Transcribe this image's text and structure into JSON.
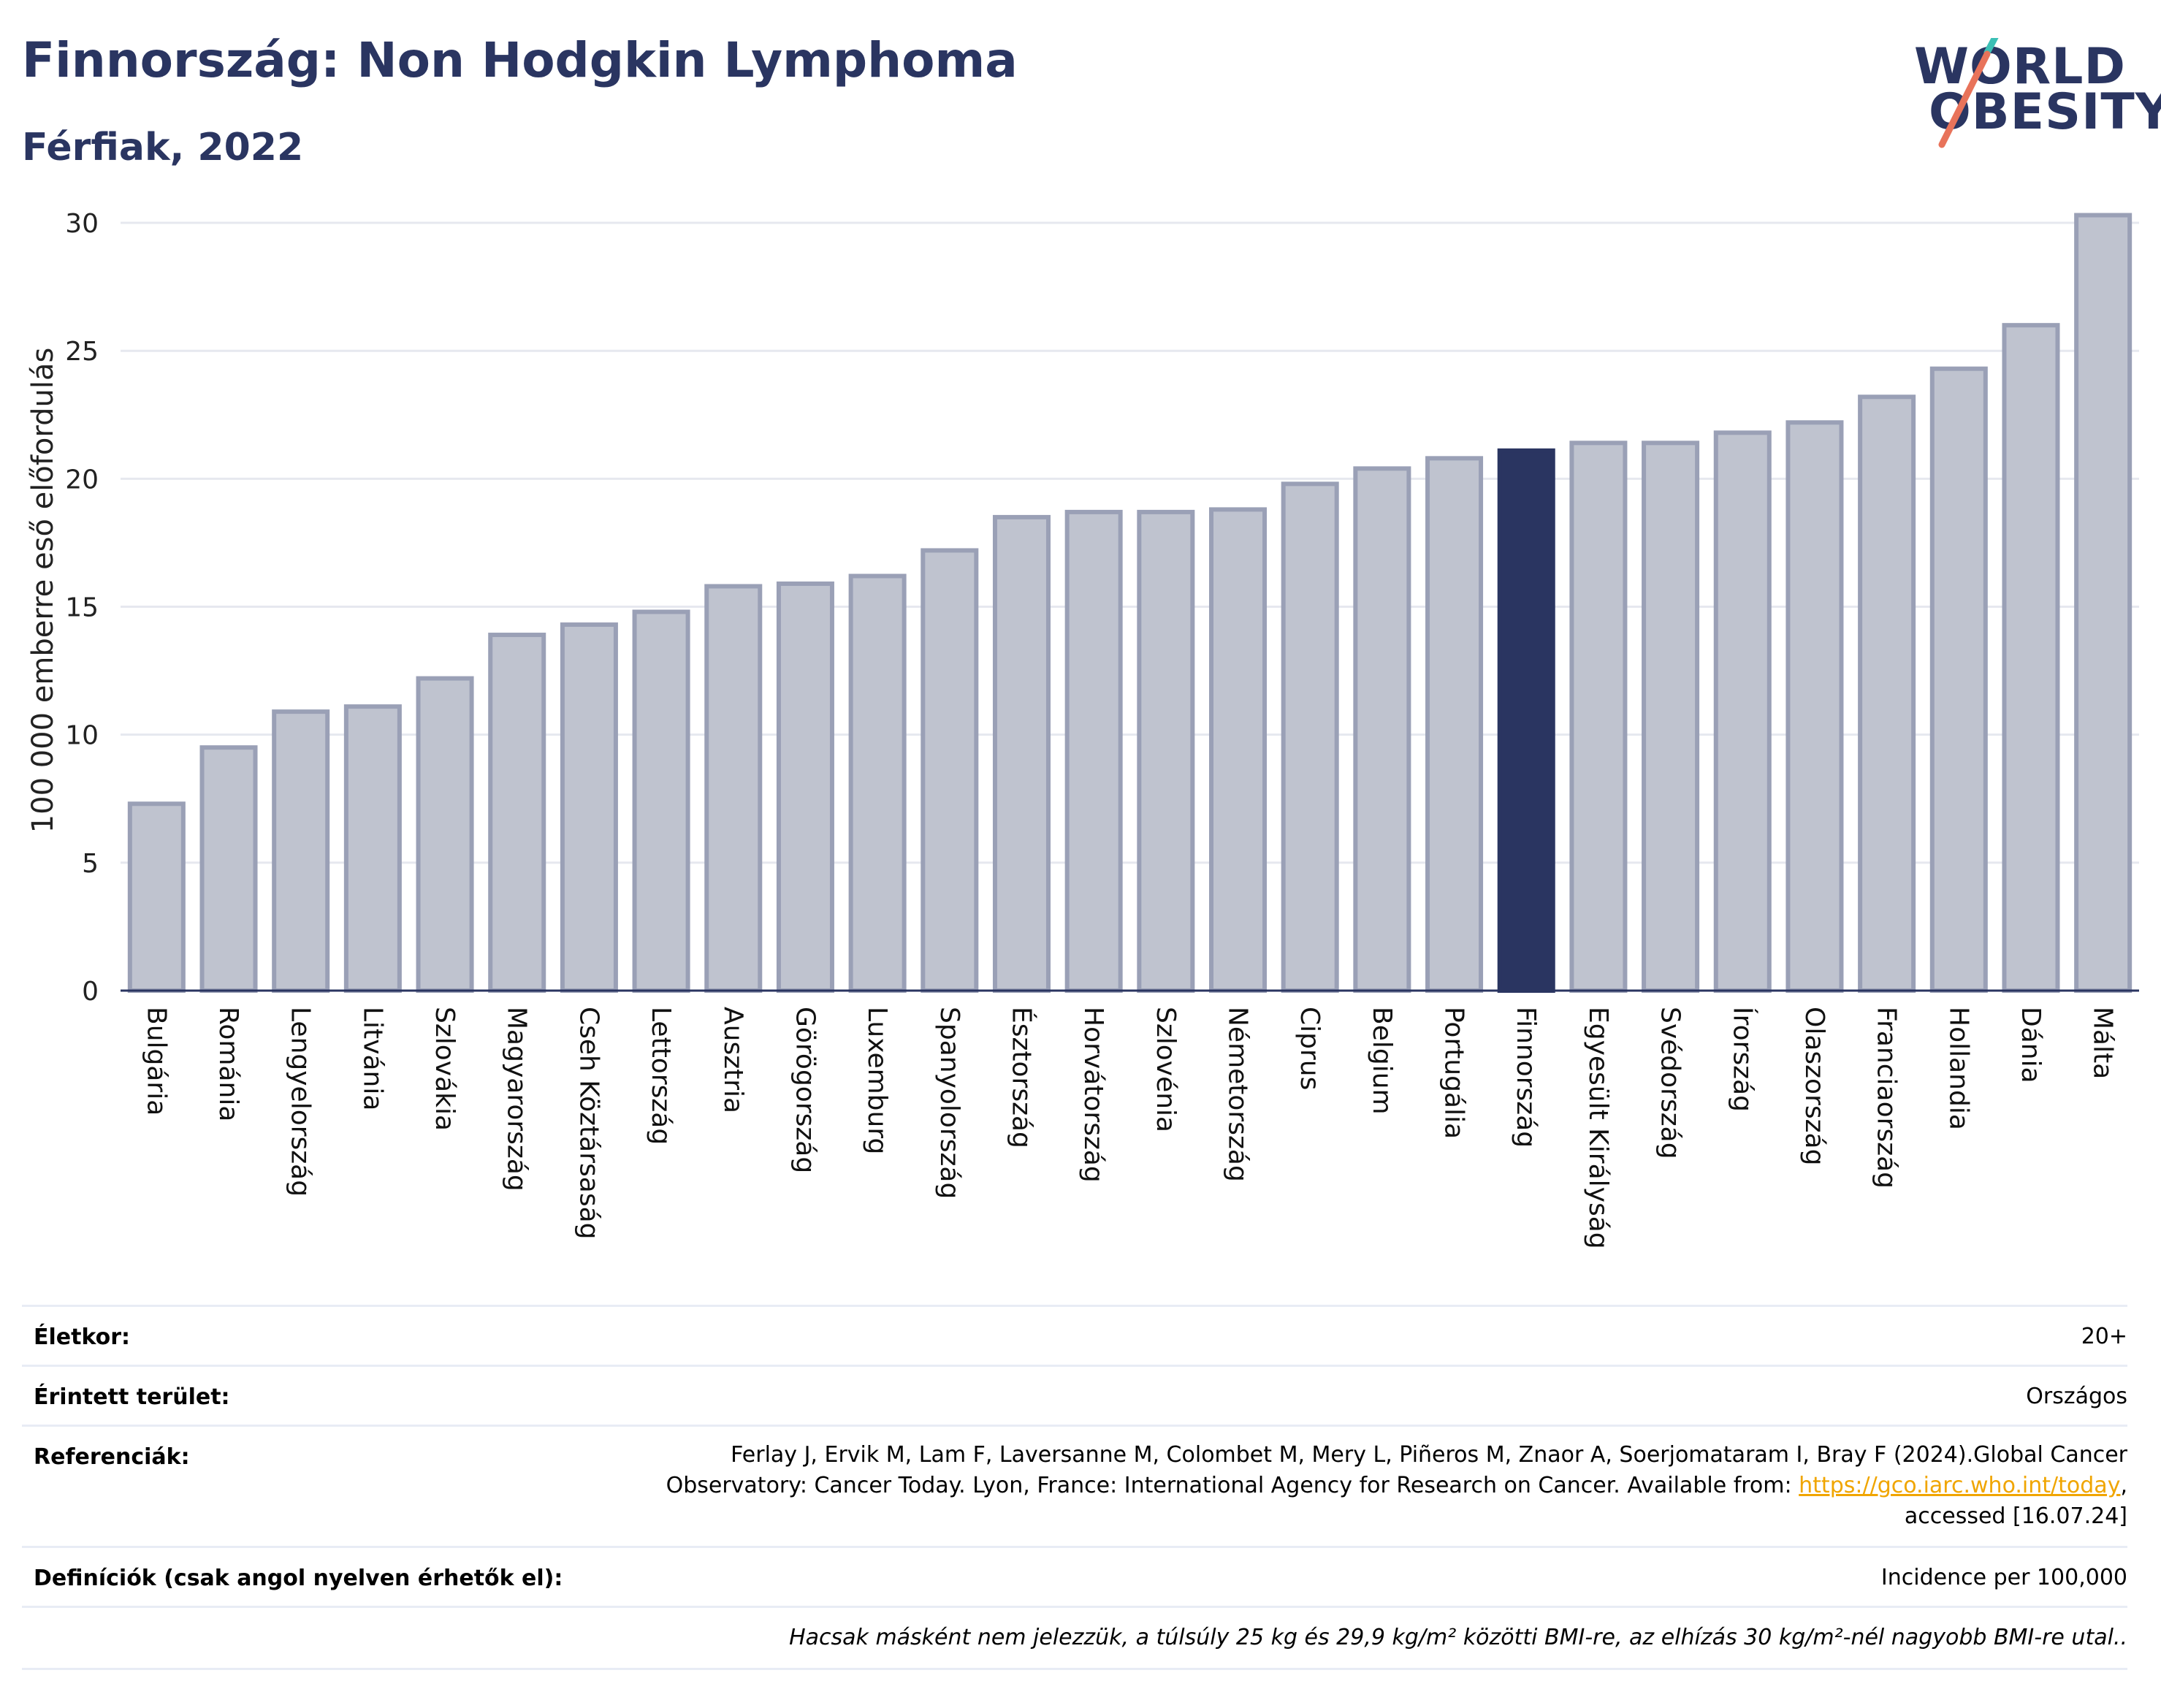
{
  "header": {
    "title": "Finnország: Non Hodgkin Lymphoma",
    "subtitle": "Férfiak, 2022"
  },
  "logo": {
    "line1": "WORLD",
    "line2": "OBESITY",
    "accent_colors": [
      "#3bbfb5",
      "#e8735a"
    ]
  },
  "chart_data": {
    "type": "bar",
    "title": "Finnország: Non Hodgkin Lymphoma",
    "subtitle": "Férfiak, 2022",
    "ylabel": "100 000 emberre eső előfordulás",
    "xlabel": "",
    "ylim": [
      0,
      31
    ],
    "yticks": [
      0,
      5,
      10,
      15,
      20,
      25,
      30
    ],
    "grid": true,
    "highlight": "Finnország",
    "colors": {
      "bar": "#bfc3cf",
      "bar_border": "#9aa0b6",
      "highlight": "#2a3561"
    },
    "categories": [
      "Bulgária",
      "Románia",
      "Lengyelország",
      "Litvánia",
      "Szlovákia",
      "Magyarország",
      "Cseh Köztársaság",
      "Lettország",
      "Ausztria",
      "Görögország",
      "Luxemburg",
      "Spanyolország",
      "Észtország",
      "Horvátország",
      "Szlovénia",
      "Németország",
      "Ciprus",
      "Belgium",
      "Portugália",
      "Finnország",
      "Egyesült Királyság",
      "Svédország",
      "Írország",
      "Olaszország",
      "Franciaország",
      "Hollandia",
      "Dánia",
      "Málta"
    ],
    "values": [
      7.3,
      9.5,
      10.9,
      11.1,
      12.2,
      13.9,
      14.3,
      14.8,
      15.8,
      15.9,
      16.2,
      17.2,
      18.5,
      18.7,
      18.7,
      18.8,
      19.8,
      20.4,
      20.8,
      21.1,
      21.4,
      21.4,
      21.8,
      22.2,
      23.2,
      24.3,
      26.0,
      30.3
    ]
  },
  "info": {
    "age_label": "Életkor:",
    "age_value": "20+",
    "area_label": "Érintett terület:",
    "area_value": "Országos",
    "ref_label": "Referenciák:",
    "ref_line1": "Ferlay J, Ervik M, Lam F, Laversanne M, Colombet M, Mery L, Piñeros M, Znaor A, Soerjomataram I, Bray F (2024).Global Cancer",
    "ref_line2_pre": "Observatory: Cancer Today. Lyon, France: International Agency for Research on Cancer. Available from: ",
    "ref_link": "https://gco.iarc.who.int/today",
    "ref_line2_post": ",",
    "ref_line3": "accessed [16.07.24]",
    "def_label": "Definíciók (csak angol nyelven érhetők el):",
    "def_value": "Incidence per 100,000",
    "note": "Hacsak másként nem jelezzük, a túlsúly 25 kg és 29,9 kg/m² közötti BMI-re, az elhízás 30 kg/m²-nél nagyobb BMI-re utal.."
  }
}
